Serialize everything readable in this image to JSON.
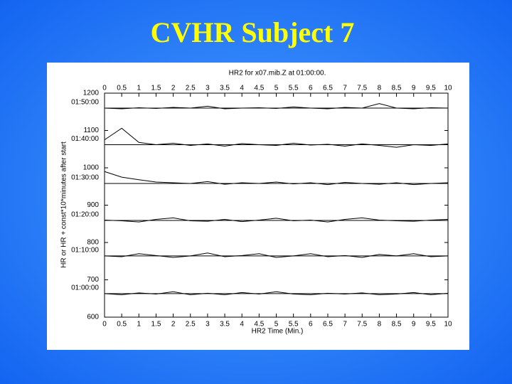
{
  "slide_title": "CVHR   Subject 7",
  "chart_data": {
    "type": "line",
    "title": "HR2 for x07.mib.Z at 01:00:00.",
    "xlabel": "HR2 Time (Min.)",
    "ylabel": "HR or HR + const*10*minutes after start",
    "x": [
      0,
      0.5,
      1,
      1.5,
      2,
      2.5,
      3,
      3.5,
      4,
      4.5,
      5,
      5.5,
      6,
      6.5,
      7,
      7.5,
      8,
      8.5,
      9,
      9.5,
      10
    ],
    "xlim": [
      0,
      10
    ],
    "xticks": [
      0,
      0.5,
      1,
      1.5,
      2,
      2.5,
      3,
      3.5,
      4,
      4.5,
      5,
      5.5,
      6,
      6.5,
      7,
      7.5,
      8,
      8.5,
      9,
      9.5,
      10
    ],
    "ylim": [
      600,
      1200
    ],
    "yticks": [
      600,
      700,
      800,
      900,
      1000,
      1100,
      1200
    ],
    "series": [
      {
        "name": "01:50:00",
        "color": "#000000",
        "baseline": 1160,
        "values": [
          1160,
          1158,
          1161,
          1159,
          1162,
          1160,
          1165,
          1158,
          1160,
          1161,
          1159,
          1163,
          1160,
          1158,
          1162,
          1160,
          1172,
          1160,
          1158,
          1161,
          1160
        ]
      },
      {
        "name": "01:40:00",
        "color": "#000000",
        "baseline": 1062,
        "values": [
          1075,
          1106,
          1068,
          1062,
          1066,
          1060,
          1064,
          1058,
          1065,
          1062,
          1060,
          1066,
          1061,
          1063,
          1058,
          1064,
          1060,
          1055,
          1062,
          1060,
          1064
        ]
      },
      {
        "name": "01:30:00",
        "color": "#000000",
        "baseline": 958,
        "values": [
          990,
          975,
          968,
          962,
          960,
          958,
          963,
          956,
          960,
          958,
          962,
          957,
          960,
          955,
          961,
          958,
          956,
          960,
          955,
          958,
          960
        ]
      },
      {
        "name": "01:20:00",
        "color": "#000000",
        "baseline": 859,
        "values": [
          860,
          858,
          855,
          862,
          866,
          858,
          857,
          862,
          856,
          860,
          865,
          858,
          860,
          855,
          862,
          866,
          860,
          858,
          857,
          860,
          862
        ]
      },
      {
        "name": "01:10:00",
        "color": "#000000",
        "baseline": 764,
        "values": [
          764,
          762,
          770,
          765,
          760,
          764,
          772,
          762,
          765,
          770,
          760,
          764,
          770,
          762,
          765,
          760,
          768,
          764,
          770,
          762,
          764
        ]
      },
      {
        "name": "01:00:00",
        "color": "#000000",
        "baseline": 663,
        "values": [
          663,
          660,
          665,
          662,
          668,
          660,
          664,
          660,
          666,
          662,
          668,
          662,
          660,
          664,
          662,
          665,
          660,
          662,
          666,
          660,
          664
        ]
      }
    ]
  }
}
